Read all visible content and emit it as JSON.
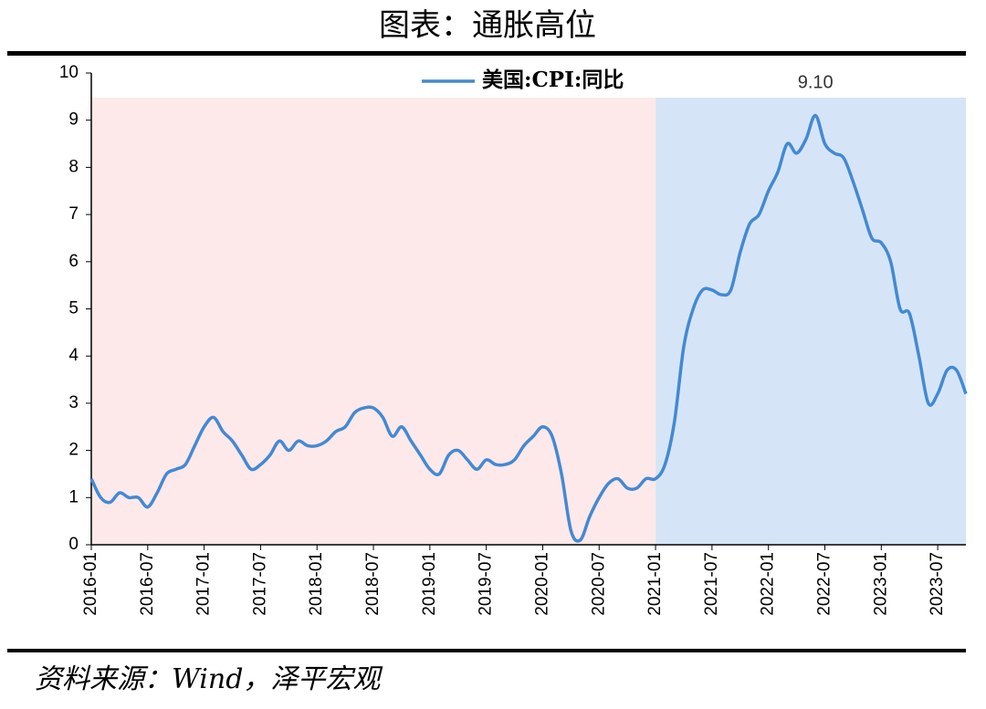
{
  "chart_data": {
    "type": "line",
    "title": "图表：通胀高位",
    "source": "资料来源：Wind，泽平宏观",
    "categories": [
      "2016-01",
      null,
      null,
      null,
      null,
      null,
      "2016-07",
      null,
      null,
      null,
      null,
      null,
      "2017-01",
      null,
      null,
      null,
      null,
      null,
      "2017-07",
      null,
      null,
      null,
      null,
      null,
      "2018-01",
      null,
      null,
      null,
      null,
      null,
      "2018-07",
      null,
      null,
      null,
      null,
      null,
      "2019-01",
      null,
      null,
      null,
      null,
      null,
      "2019-07",
      null,
      null,
      null,
      null,
      null,
      "2020-01",
      null,
      null,
      null,
      null,
      null,
      "2020-07",
      null,
      null,
      null,
      null,
      null,
      "2021-01",
      null,
      null,
      null,
      null,
      null,
      "2021-07",
      null,
      null,
      null,
      null,
      null,
      "2022-01",
      null,
      null,
      null,
      null,
      null,
      "2022-07",
      null,
      null,
      null,
      null,
      null,
      "2023-01",
      null,
      null,
      null,
      null,
      null,
      "2023-07",
      null,
      null,
      null
    ],
    "series": [
      {
        "name": "美国:CPI:同比",
        "color": "#4389d3",
        "values": [
          1.4,
          1.0,
          0.9,
          1.1,
          1.0,
          1.0,
          0.8,
          1.1,
          1.5,
          1.6,
          1.7,
          2.1,
          2.5,
          2.7,
          2.4,
          2.2,
          1.9,
          1.6,
          1.7,
          1.9,
          2.2,
          2.0,
          2.2,
          2.1,
          2.1,
          2.2,
          2.4,
          2.5,
          2.8,
          2.9,
          2.9,
          2.7,
          2.3,
          2.5,
          2.2,
          1.9,
          1.6,
          1.5,
          1.9,
          2.0,
          1.8,
          1.6,
          1.8,
          1.7,
          1.7,
          1.8,
          2.1,
          2.3,
          2.5,
          2.3,
          1.5,
          0.3,
          0.1,
          0.6,
          1.0,
          1.3,
          1.4,
          1.2,
          1.2,
          1.4,
          1.4,
          1.7,
          2.6,
          4.2,
          5.0,
          5.4,
          5.4,
          5.3,
          5.4,
          6.2,
          6.8,
          7.0,
          7.5,
          7.9,
          8.5,
          8.3,
          8.6,
          9.1,
          8.5,
          8.3,
          8.2,
          7.7,
          7.1,
          6.5,
          6.4,
          6.0,
          5.0,
          4.9,
          4.0,
          3.0,
          3.2,
          3.7,
          3.7,
          3.2
        ],
        "value_labels": [
          null,
          null,
          null,
          null,
          null,
          null,
          null,
          null,
          null,
          null,
          null,
          null,
          null,
          null,
          null,
          null,
          null,
          null,
          null,
          null,
          null,
          null,
          null,
          null,
          null,
          null,
          null,
          null,
          null,
          null,
          null,
          null,
          null,
          null,
          null,
          null,
          null,
          null,
          null,
          null,
          null,
          null,
          null,
          null,
          null,
          null,
          null,
          null,
          null,
          null,
          null,
          null,
          null,
          null,
          null,
          null,
          null,
          null,
          null,
          null,
          null,
          null,
          null,
          null,
          null,
          null,
          null,
          null,
          null,
          null,
          null,
          null,
          null,
          null,
          null,
          null,
          null,
          "9.10",
          null,
          null,
          null,
          null,
          null,
          null,
          null,
          null,
          null,
          null,
          null,
          null,
          null,
          null,
          null,
          null
        ]
      }
    ],
    "shading": [
      {
        "from": "2016-01",
        "color": "#fde9e9"
      },
      {
        "from": "2021-01",
        "color": "#d5e5f7"
      }
    ],
    "ylim": [
      0,
      10
    ],
    "yticks": [
      0,
      1,
      2,
      3,
      4,
      5,
      6,
      7,
      8,
      9,
      10
    ],
    "legend": "top"
  }
}
